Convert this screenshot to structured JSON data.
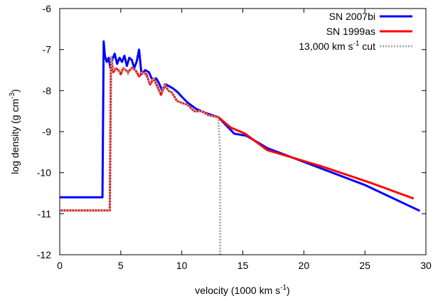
{
  "chart_data": {
    "type": "line",
    "xlabel": "velocity (1000 km s",
    "xlabel_sup": "-1",
    "xlabel_end": ")",
    "ylabel": "log density (g cm",
    "ylabel_sup": "-3",
    "ylabel_end": ")",
    "xlim": [
      0,
      30
    ],
    "ylim": [
      -12,
      -6
    ],
    "xticks": [
      0,
      5,
      10,
      15,
      20,
      25,
      30
    ],
    "yticks": [
      -12,
      -11,
      -10,
      -9,
      -8,
      -7,
      -6
    ],
    "xtick_labels": [
      "0",
      "5",
      "10",
      "15",
      "20",
      "25",
      "30"
    ],
    "ytick_labels": [
      "-12",
      "-11",
      "-10",
      "-9",
      "-8",
      "-7",
      "-6"
    ],
    "legend_position": "top-right",
    "series": [
      {
        "name": "SN 2007bi",
        "color": "#0000ff",
        "dash": "solid",
        "x": [
          0,
          3.5,
          3.6,
          3.7,
          3.85,
          4.0,
          4.15,
          4.3,
          4.5,
          4.7,
          4.9,
          5.1,
          5.3,
          5.5,
          5.7,
          5.9,
          6.1,
          6.3,
          6.5,
          6.7,
          7.0,
          7.3,
          7.6,
          7.9,
          8.1,
          8.4,
          8.7,
          9.0,
          9.3,
          9.7,
          10.0,
          10.5,
          11.2,
          12.0,
          13.0,
          14.3,
          15.3,
          17.0,
          21.0,
          25.0,
          29.5
        ],
        "y": [
          -10.6,
          -10.6,
          -6.8,
          -7.15,
          -7.3,
          -7.2,
          -7.45,
          -7.25,
          -7.1,
          -7.35,
          -7.2,
          -7.3,
          -7.15,
          -7.4,
          -7.2,
          -7.25,
          -7.45,
          -7.3,
          -7.0,
          -7.6,
          -7.5,
          -7.55,
          -7.75,
          -7.7,
          -7.8,
          -8.0,
          -7.85,
          -7.9,
          -7.95,
          -8.05,
          -8.15,
          -8.3,
          -8.45,
          -8.55,
          -8.65,
          -9.05,
          -9.1,
          -9.4,
          -9.85,
          -10.3,
          -10.93
        ]
      },
      {
        "name": "SN 1999as",
        "color": "#ff0000",
        "dash": "solid",
        "x": [
          0,
          4.1,
          4.2,
          4.4,
          4.6,
          4.8,
          5.0,
          5.2,
          5.4,
          5.6,
          5.9,
          6.2,
          6.5,
          6.8,
          7.1,
          7.4,
          7.7,
          8.0,
          8.3,
          8.6,
          8.9,
          9.2,
          9.6,
          10.0,
          10.5,
          11.0,
          11.6,
          12.2,
          13.0,
          14.0,
          15.2,
          17.0,
          21.5,
          25.5,
          29.0
        ],
        "y": [
          -10.92,
          -10.92,
          -7.2,
          -7.55,
          -7.45,
          -7.5,
          -7.6,
          -7.45,
          -7.5,
          -7.55,
          -7.45,
          -7.5,
          -7.65,
          -7.55,
          -7.6,
          -7.85,
          -7.7,
          -7.9,
          -8.1,
          -7.85,
          -8.0,
          -8.05,
          -8.25,
          -8.3,
          -8.35,
          -8.5,
          -8.5,
          -8.6,
          -8.65,
          -8.9,
          -9.05,
          -9.45,
          -9.85,
          -10.25,
          -10.63
        ]
      },
      {
        "name": "13,000 km s",
        "name_sup": "-1",
        "name_end": " cut",
        "color": "#aaaaaa",
        "dash": "dotted",
        "x": [
          0,
          4.1,
          4.2,
          4.4,
          4.6,
          4.8,
          5.0,
          5.2,
          5.4,
          5.6,
          5.9,
          6.2,
          6.5,
          6.8,
          7.1,
          7.4,
          7.7,
          8.0,
          8.3,
          8.6,
          8.9,
          9.2,
          9.6,
          10.0,
          10.5,
          11.0,
          11.6,
          12.2,
          12.9,
          13.0,
          13.15,
          13.15
        ],
        "y": [
          -10.92,
          -10.92,
          -7.15,
          -7.5,
          -7.45,
          -7.55,
          -7.55,
          -7.45,
          -7.5,
          -7.6,
          -7.45,
          -7.5,
          -7.6,
          -7.55,
          -7.65,
          -7.8,
          -7.7,
          -7.95,
          -8.05,
          -7.85,
          -8.0,
          -8.05,
          -8.25,
          -8.3,
          -8.35,
          -8.5,
          -8.5,
          -8.6,
          -8.65,
          -8.7,
          -9.5,
          -12.0
        ]
      }
    ]
  }
}
